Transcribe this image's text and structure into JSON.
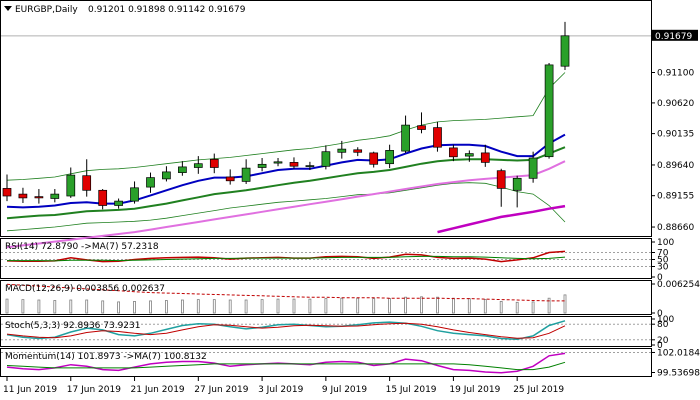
{
  "header": {
    "symbol": "EURGBP,Daily",
    "ohlc": "0.91201 0.91898 0.91142 0.91679"
  },
  "chart_data": [
    {
      "type": "candlestick",
      "title": "EURGBP,Daily",
      "ylim": [
        0.8855,
        0.9215
      ],
      "price_ticks": [
        "0.91679",
        "0.91100",
        "0.90620",
        "0.90135",
        "0.89640",
        "0.89155",
        "0.88660"
      ],
      "price_tick_values": [
        0.91679,
        0.911,
        0.9062,
        0.90135,
        0.8964,
        0.89155,
        0.8866
      ],
      "current_price": 0.91679,
      "candles": [
        {
          "o": 0.8927,
          "h": 0.8949,
          "l": 0.8907,
          "c": 0.8915
        },
        {
          "o": 0.8918,
          "h": 0.8928,
          "l": 0.8904,
          "c": 0.8912
        },
        {
          "o": 0.8914,
          "h": 0.8926,
          "l": 0.8903,
          "c": 0.8912
        },
        {
          "o": 0.8911,
          "h": 0.8926,
          "l": 0.8905,
          "c": 0.8918
        },
        {
          "o": 0.8915,
          "h": 0.896,
          "l": 0.8912,
          "c": 0.8948
        },
        {
          "o": 0.8947,
          "h": 0.8973,
          "l": 0.8914,
          "c": 0.8924
        },
        {
          "o": 0.8924,
          "h": 0.8926,
          "l": 0.8894,
          "c": 0.89
        },
        {
          "o": 0.89,
          "h": 0.8911,
          "l": 0.8895,
          "c": 0.8907
        },
        {
          "o": 0.8907,
          "h": 0.8938,
          "l": 0.8903,
          "c": 0.8928
        },
        {
          "o": 0.8929,
          "h": 0.8952,
          "l": 0.892,
          "c": 0.8944
        },
        {
          "o": 0.8942,
          "h": 0.8962,
          "l": 0.8938,
          "c": 0.8953
        },
        {
          "o": 0.8952,
          "h": 0.897,
          "l": 0.8947,
          "c": 0.8961
        },
        {
          "o": 0.896,
          "h": 0.8978,
          "l": 0.895,
          "c": 0.8966
        },
        {
          "o": 0.8973,
          "h": 0.8982,
          "l": 0.8951,
          "c": 0.896
        },
        {
          "o": 0.8945,
          "h": 0.8957,
          "l": 0.8933,
          "c": 0.8939
        },
        {
          "o": 0.8938,
          "h": 0.8973,
          "l": 0.8934,
          "c": 0.8959
        },
        {
          "o": 0.896,
          "h": 0.8975,
          "l": 0.8954,
          "c": 0.8965
        },
        {
          "o": 0.8967,
          "h": 0.8975,
          "l": 0.8962,
          "c": 0.8969
        },
        {
          "o": 0.8968,
          "h": 0.8976,
          "l": 0.8958,
          "c": 0.8962
        },
        {
          "o": 0.8962,
          "h": 0.8969,
          "l": 0.8956,
          "c": 0.8963
        },
        {
          "o": 0.8962,
          "h": 0.8995,
          "l": 0.8957,
          "c": 0.8985
        },
        {
          "o": 0.8984,
          "h": 0.9002,
          "l": 0.8974,
          "c": 0.8989
        },
        {
          "o": 0.8988,
          "h": 0.8992,
          "l": 0.8978,
          "c": 0.8984
        },
        {
          "o": 0.8983,
          "h": 0.8985,
          "l": 0.896,
          "c": 0.8965
        },
        {
          "o": 0.8966,
          "h": 0.8996,
          "l": 0.8959,
          "c": 0.8987
        },
        {
          "o": 0.8986,
          "h": 0.9042,
          "l": 0.8983,
          "c": 0.9027
        },
        {
          "o": 0.9026,
          "h": 0.9047,
          "l": 0.9014,
          "c": 0.902
        },
        {
          "o": 0.9023,
          "h": 0.9032,
          "l": 0.8985,
          "c": 0.8992
        },
        {
          "o": 0.8991,
          "h": 0.8996,
          "l": 0.897,
          "c": 0.8977
        },
        {
          "o": 0.8978,
          "h": 0.8987,
          "l": 0.8969,
          "c": 0.8982
        },
        {
          "o": 0.8983,
          "h": 0.8996,
          "l": 0.8961,
          "c": 0.8968
        },
        {
          "o": 0.8955,
          "h": 0.8958,
          "l": 0.8898,
          "c": 0.8927
        },
        {
          "o": 0.8924,
          "h": 0.8947,
          "l": 0.8897,
          "c": 0.8943
        },
        {
          "o": 0.8943,
          "h": 0.8985,
          "l": 0.8936,
          "c": 0.8975
        },
        {
          "o": 0.8977,
          "h": 0.9125,
          "l": 0.8974,
          "c": 0.9122
        },
        {
          "o": 0.912,
          "h": 0.919,
          "l": 0.9114,
          "c": 0.9168
        }
      ],
      "sma_blue": [
        0.8898,
        0.8897,
        0.8898,
        0.89,
        0.8904,
        0.8905,
        0.8903,
        0.8903,
        0.8908,
        0.8916,
        0.8924,
        0.8932,
        0.8939,
        0.8944,
        0.8944,
        0.8946,
        0.8951,
        0.8956,
        0.8958,
        0.8958,
        0.8963,
        0.8968,
        0.8972,
        0.8971,
        0.8973,
        0.8982,
        0.899,
        0.8995,
        0.8996,
        0.8996,
        0.8994,
        0.8985,
        0.8978,
        0.8978,
        0.8998,
        0.9012
      ],
      "sma_green": [
        0.888,
        0.8882,
        0.8884,
        0.8885,
        0.8888,
        0.8891,
        0.8892,
        0.8893,
        0.8895,
        0.8899,
        0.8903,
        0.8908,
        0.8913,
        0.8918,
        0.8921,
        0.8924,
        0.8928,
        0.8932,
        0.8936,
        0.8939,
        0.8943,
        0.8947,
        0.8951,
        0.8953,
        0.8956,
        0.8961,
        0.8966,
        0.897,
        0.8972,
        0.8973,
        0.8973,
        0.8972,
        0.8971,
        0.8972,
        0.8982,
        0.8992
      ],
      "sma_magenta": [
        0.8834,
        0.8837,
        0.884,
        0.8843,
        0.8846,
        0.8849,
        0.8852,
        0.8855,
        0.8858,
        0.8862,
        0.8866,
        0.887,
        0.8874,
        0.8878,
        0.8882,
        0.8886,
        0.889,
        0.8894,
        0.8898,
        0.8902,
        0.8906,
        0.891,
        0.8914,
        0.8918,
        0.8922,
        0.8926,
        0.893,
        0.8934,
        0.8937,
        0.894,
        0.8942,
        0.8944,
        0.8946,
        0.8948,
        0.8958,
        0.897
      ],
      "bb_upper": [
        0.894,
        0.8941,
        0.8943,
        0.8945,
        0.895,
        0.8955,
        0.8957,
        0.8958,
        0.896,
        0.8963,
        0.8966,
        0.8969,
        0.8972,
        0.8974,
        0.8976,
        0.8979,
        0.8982,
        0.8985,
        0.8988,
        0.899,
        0.8994,
        0.8998,
        0.9003,
        0.9006,
        0.901,
        0.9019,
        0.9027,
        0.9032,
        0.9034,
        0.9035,
        0.9036,
        0.9038,
        0.904,
        0.9042,
        0.9085,
        0.911
      ],
      "bb_lower": [
        0.886,
        0.8862,
        0.8864,
        0.8866,
        0.8869,
        0.8872,
        0.8873,
        0.8874,
        0.8875,
        0.8877,
        0.888,
        0.8884,
        0.8888,
        0.8892,
        0.8896,
        0.8899,
        0.8902,
        0.8905,
        0.8907,
        0.8909,
        0.8911,
        0.8914,
        0.8917,
        0.8918,
        0.892,
        0.8924,
        0.8928,
        0.8932,
        0.8935,
        0.8936,
        0.8935,
        0.8929,
        0.8922,
        0.8918,
        0.89,
        0.8874
      ],
      "lower_magenta": [
        null,
        null,
        null,
        null,
        null,
        null,
        null,
        null,
        null,
        null,
        null,
        null,
        null,
        null,
        null,
        null,
        null,
        null,
        null,
        null,
        null,
        null,
        null,
        null,
        null,
        null,
        null,
        0.8858,
        0.8864,
        0.887,
        0.8876,
        0.8882,
        0.8886,
        0.889,
        0.8895,
        0.8899
      ]
    },
    {
      "type": "line",
      "title": "RSI(14) 72.8790 ->MA(7) 57.2318",
      "ylim": [
        0,
        100
      ],
      "tick_labels": [
        "100",
        "70",
        "50",
        "30",
        "0"
      ],
      "tick_values": [
        100,
        70,
        50,
        30,
        0
      ],
      "series": [
        {
          "name": "RSI(14)",
          "color": "#c00000",
          "values": [
            46,
            45,
            45,
            46,
            55,
            49,
            44,
            45,
            50,
            53,
            55,
            56,
            57,
            55,
            51,
            54,
            55,
            56,
            54,
            54,
            58,
            59,
            58,
            53,
            57,
            65,
            63,
            56,
            53,
            54,
            51,
            44,
            49,
            55,
            70,
            73
          ]
        },
        {
          "name": "MA(7)",
          "color": "#008000",
          "values": [
            47,
            47,
            47,
            46,
            48,
            48,
            48,
            47,
            48,
            49,
            50,
            51,
            52,
            53,
            53,
            54,
            54,
            54,
            54,
            54,
            55,
            56,
            56,
            56,
            56,
            58,
            59,
            59,
            58,
            58,
            57,
            55,
            53,
            52,
            53,
            57
          ]
        }
      ]
    },
    {
      "type": "bar",
      "title": "MACD(12,26,9) 0.003856 0.002637",
      "tick_labels": [
        "0.006254",
        "0"
      ],
      "tick_values": [
        0.006254,
        0
      ],
      "series": [
        {
          "name": "MACD",
          "color": "#808080",
          "values": [
            0.003,
            0.0029,
            0.0028,
            0.0027,
            0.0028,
            0.0028,
            0.0026,
            0.0024,
            0.0025,
            0.0026,
            0.0027,
            0.0028,
            0.0029,
            0.0029,
            0.0028,
            0.0028,
            0.0029,
            0.003,
            0.003,
            0.003,
            0.0031,
            0.0032,
            0.0032,
            0.0031,
            0.0031,
            0.0034,
            0.0035,
            0.0034,
            0.0032,
            0.0031,
            0.0029,
            0.0025,
            0.0023,
            0.0024,
            0.0032,
            0.0039
          ]
        },
        {
          "name": "Signal",
          "color": "#c00000",
          "values": [
            0.0062,
            0.006,
            0.0058,
            0.0056,
            0.0054,
            0.0052,
            0.005,
            0.0048,
            0.0046,
            0.0044,
            0.0043,
            0.0042,
            0.0041,
            0.004,
            0.0039,
            0.0038,
            0.0037,
            0.0036,
            0.0035,
            0.0034,
            0.0034,
            0.0033,
            0.0033,
            0.0033,
            0.0032,
            0.0032,
            0.0032,
            0.0032,
            0.0031,
            0.0031,
            0.003,
            0.0029,
            0.0028,
            0.0027,
            0.0026,
            0.0026
          ]
        }
      ]
    },
    {
      "type": "line",
      "title": "Stoch(5,3,3) 92.8936 73.9231",
      "ylim": [
        0,
        100
      ],
      "tick_labels": [
        "100",
        "80",
        "20",
        "0"
      ],
      "tick_values": [
        100,
        80,
        20,
        0
      ],
      "series": [
        {
          "name": "%K",
          "color": "#20a0a0",
          "values": [
            40,
            30,
            25,
            30,
            50,
            65,
            58,
            40,
            35,
            45,
            60,
            75,
            82,
            80,
            70,
            62,
            68,
            78,
            80,
            75,
            70,
            72,
            78,
            85,
            88,
            84,
            72,
            55,
            45,
            40,
            35,
            25,
            22,
            35,
            75,
            93
          ]
        },
        {
          "name": "%D",
          "color": "#c00000",
          "values": [
            42,
            35,
            30,
            28,
            35,
            48,
            55,
            52,
            45,
            40,
            45,
            58,
            70,
            78,
            76,
            70,
            65,
            68,
            74,
            76,
            74,
            72,
            73,
            78,
            82,
            84,
            80,
            70,
            58,
            48,
            40,
            32,
            26,
            28,
            45,
            74
          ]
        }
      ]
    },
    {
      "type": "line",
      "title": "Momentum(14) 101.8973 ->MA(7) 100.8132",
      "ylim": [
        99.35,
        102.2
      ],
      "tick_labels": [
        "102.0184",
        "99.53698"
      ],
      "tick_values": [
        102.0184,
        99.53698
      ],
      "series": [
        {
          "name": "Momentum(14)",
          "color": "#c000c0",
          "values": [
            100.2,
            100.0,
            99.9,
            100.1,
            100.5,
            100.3,
            99.9,
            99.8,
            100.2,
            100.6,
            100.8,
            100.9,
            100.9,
            100.7,
            100.3,
            100.5,
            100.6,
            100.7,
            100.6,
            100.5,
            100.8,
            100.9,
            100.8,
            100.4,
            100.6,
            101.2,
            101.0,
            100.4,
            99.9,
            99.8,
            99.6,
            99.5,
            99.7,
            100.3,
            101.6,
            101.9
          ]
        },
        {
          "name": "MA(7)",
          "color": "#008000",
          "values": [
            100.4,
            100.3,
            100.2,
            100.1,
            100.1,
            100.1,
            100.1,
            100.1,
            100.1,
            100.2,
            100.3,
            100.4,
            100.5,
            100.6,
            100.6,
            100.6,
            100.6,
            100.6,
            100.6,
            100.6,
            100.6,
            100.6,
            100.6,
            100.6,
            100.6,
            100.6,
            100.6,
            100.6,
            100.6,
            100.5,
            100.3,
            100.1,
            99.9,
            99.9,
            100.2,
            100.8
          ]
        }
      ]
    }
  ],
  "xaxis": {
    "labels": [
      "11 Jun 2019",
      "17 Jun 2019",
      "21 Jun 2019",
      "27 Jun 2019",
      "3 Jul 2019",
      "9 Jul 2019",
      "15 Jul 2019",
      "19 Jul 2019",
      "25 Jul 2019"
    ],
    "label_index": [
      0,
      4,
      8,
      12,
      16,
      20,
      24,
      28,
      32
    ]
  },
  "colors": {
    "bull": "#2aa02a",
    "bear": "#e00000",
    "sma_blue": "#0000c0",
    "sma_green": "#208020",
    "sma_magenta": "#e070e0",
    "bb": "#208020",
    "lower_magenta": "#c000c0"
  }
}
